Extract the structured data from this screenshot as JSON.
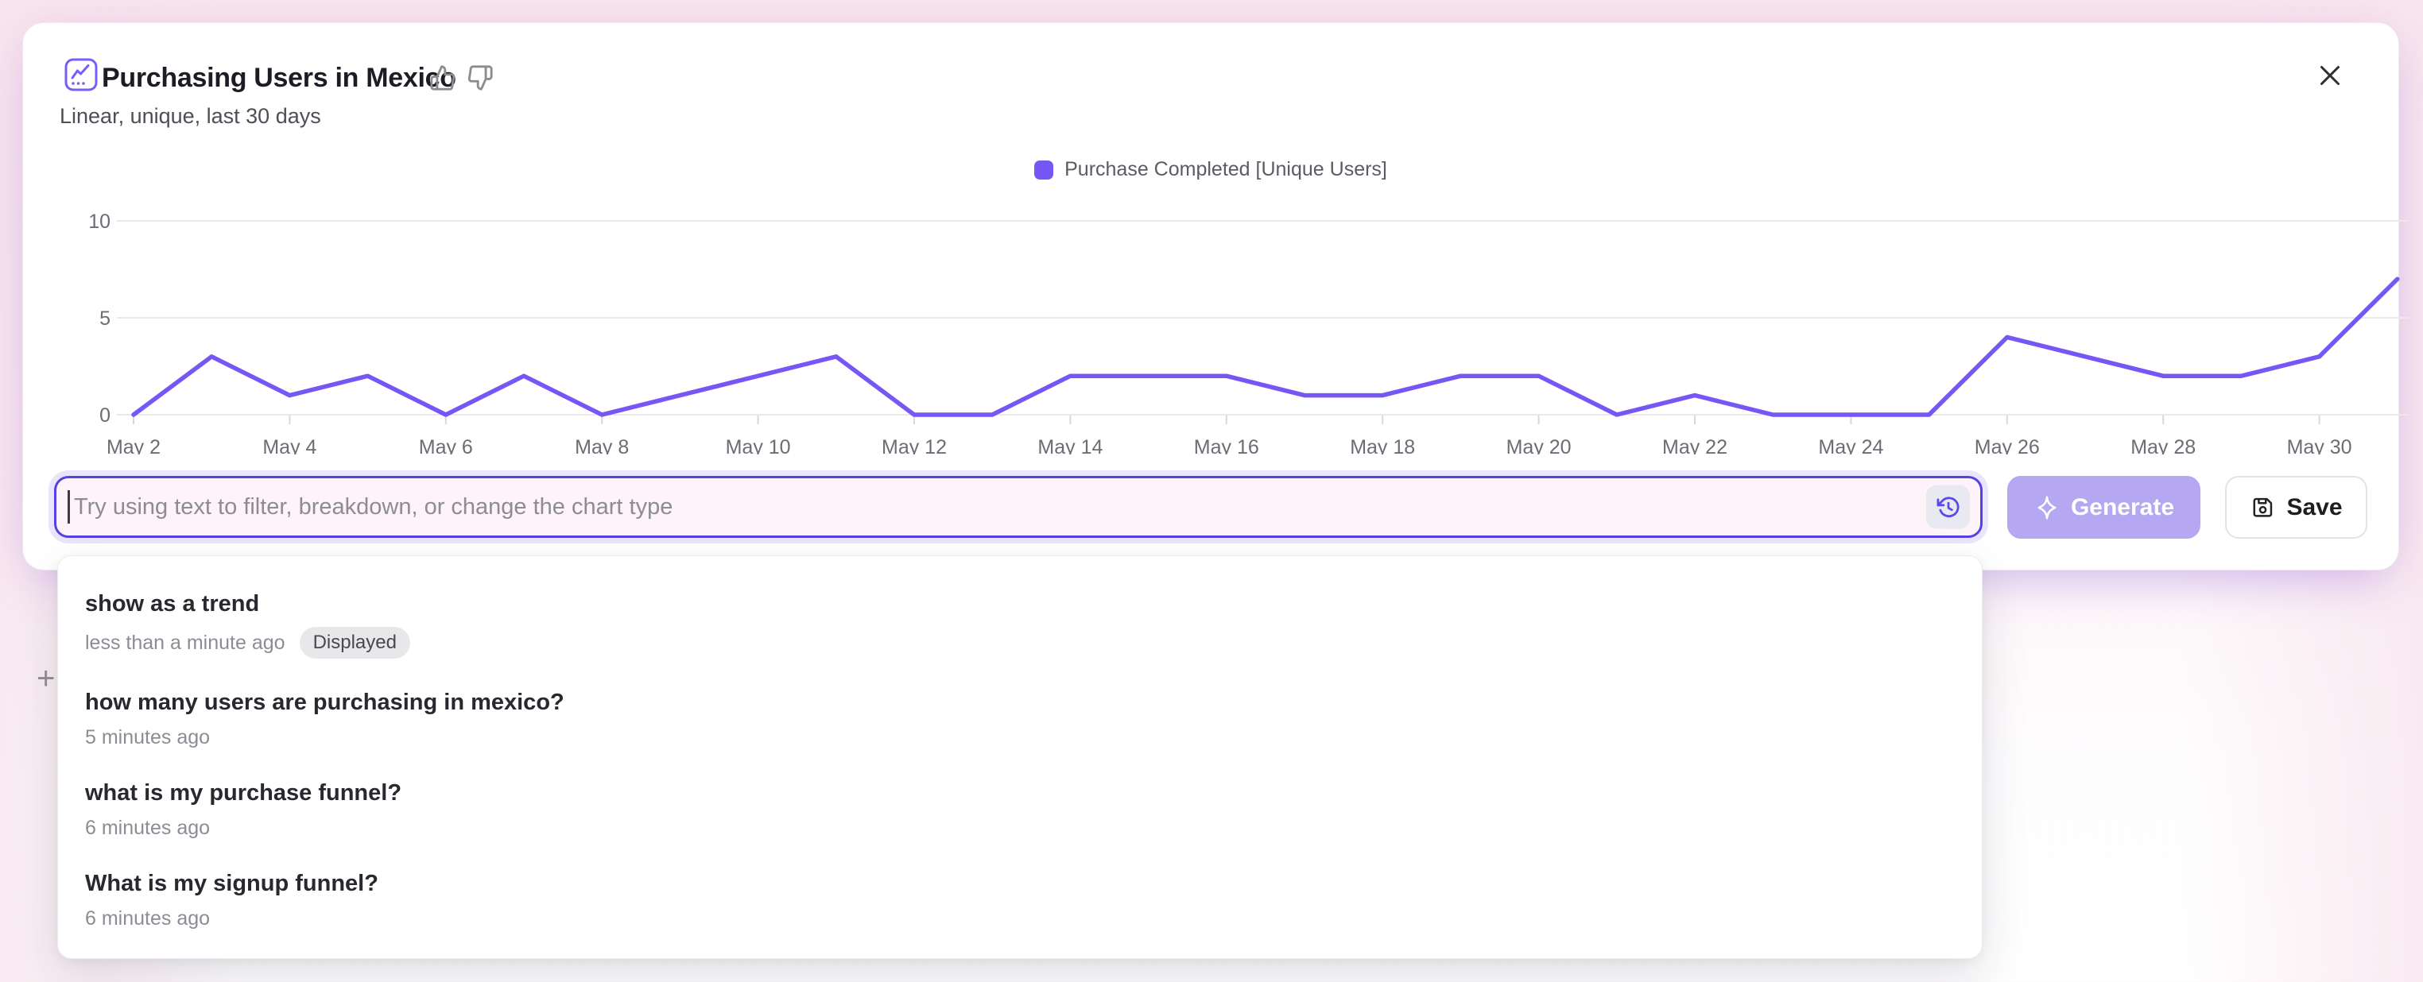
{
  "card": {
    "title": "Purchasing Users in Mexico",
    "subtitle": "Linear, unique, last 30 days"
  },
  "legend": {
    "label": "Purchase Completed [Unique Users]",
    "color": "#7656f5"
  },
  "chart_data": {
    "type": "line",
    "title": "Purchasing Users in Mexico",
    "x": [
      "May 2",
      "May 3",
      "May 4",
      "May 5",
      "May 6",
      "May 7",
      "May 8",
      "May 9",
      "May 10",
      "May 11",
      "May 12",
      "May 13",
      "May 14",
      "May 15",
      "May 16",
      "May 17",
      "May 18",
      "May 19",
      "May 20",
      "May 21",
      "May 22",
      "May 23",
      "May 24",
      "May 25",
      "May 26",
      "May 27",
      "May 28",
      "May 29",
      "May 30",
      "May 31"
    ],
    "tick_every": 2,
    "yticks": [
      0,
      5,
      10
    ],
    "ylim": [
      0,
      10
    ],
    "grid": true,
    "legend_position": "top-center",
    "series": [
      {
        "name": "Purchase Completed [Unique Users]",
        "color": "#7656f5",
        "values": [
          0,
          3,
          1,
          2,
          0,
          2,
          0,
          1,
          2,
          3,
          0,
          0,
          2,
          2,
          2,
          1,
          1,
          2,
          2,
          0,
          1,
          0,
          0,
          0,
          4,
          3,
          2,
          2,
          3,
          7
        ]
      }
    ]
  },
  "prompt": {
    "value": "",
    "placeholder": "Try using text to filter, breakdown, or change the chart type"
  },
  "actions": {
    "generate": "Generate",
    "save": "Save"
  },
  "history_dropdown": {
    "items": [
      {
        "title": "show as a trend",
        "time": "less than a minute ago",
        "badge": "Displayed"
      },
      {
        "title": "how many users are purchasing in mexico?",
        "time": "5 minutes ago",
        "badge": ""
      },
      {
        "title": "what is my purchase funnel?",
        "time": "6 minutes ago",
        "badge": ""
      },
      {
        "title": "What is my signup funnel?",
        "time": "6 minutes ago",
        "badge": ""
      }
    ]
  },
  "artifacts": {
    "plus": "+"
  },
  "colors": {
    "accent": "#5443e2",
    "line": "#7656f5",
    "input_bg": "#fdf3f9",
    "generate_bg": "#b5a7f2",
    "page_pink": "#f8e9f0",
    "badge_bg": "#e8e8ea"
  }
}
